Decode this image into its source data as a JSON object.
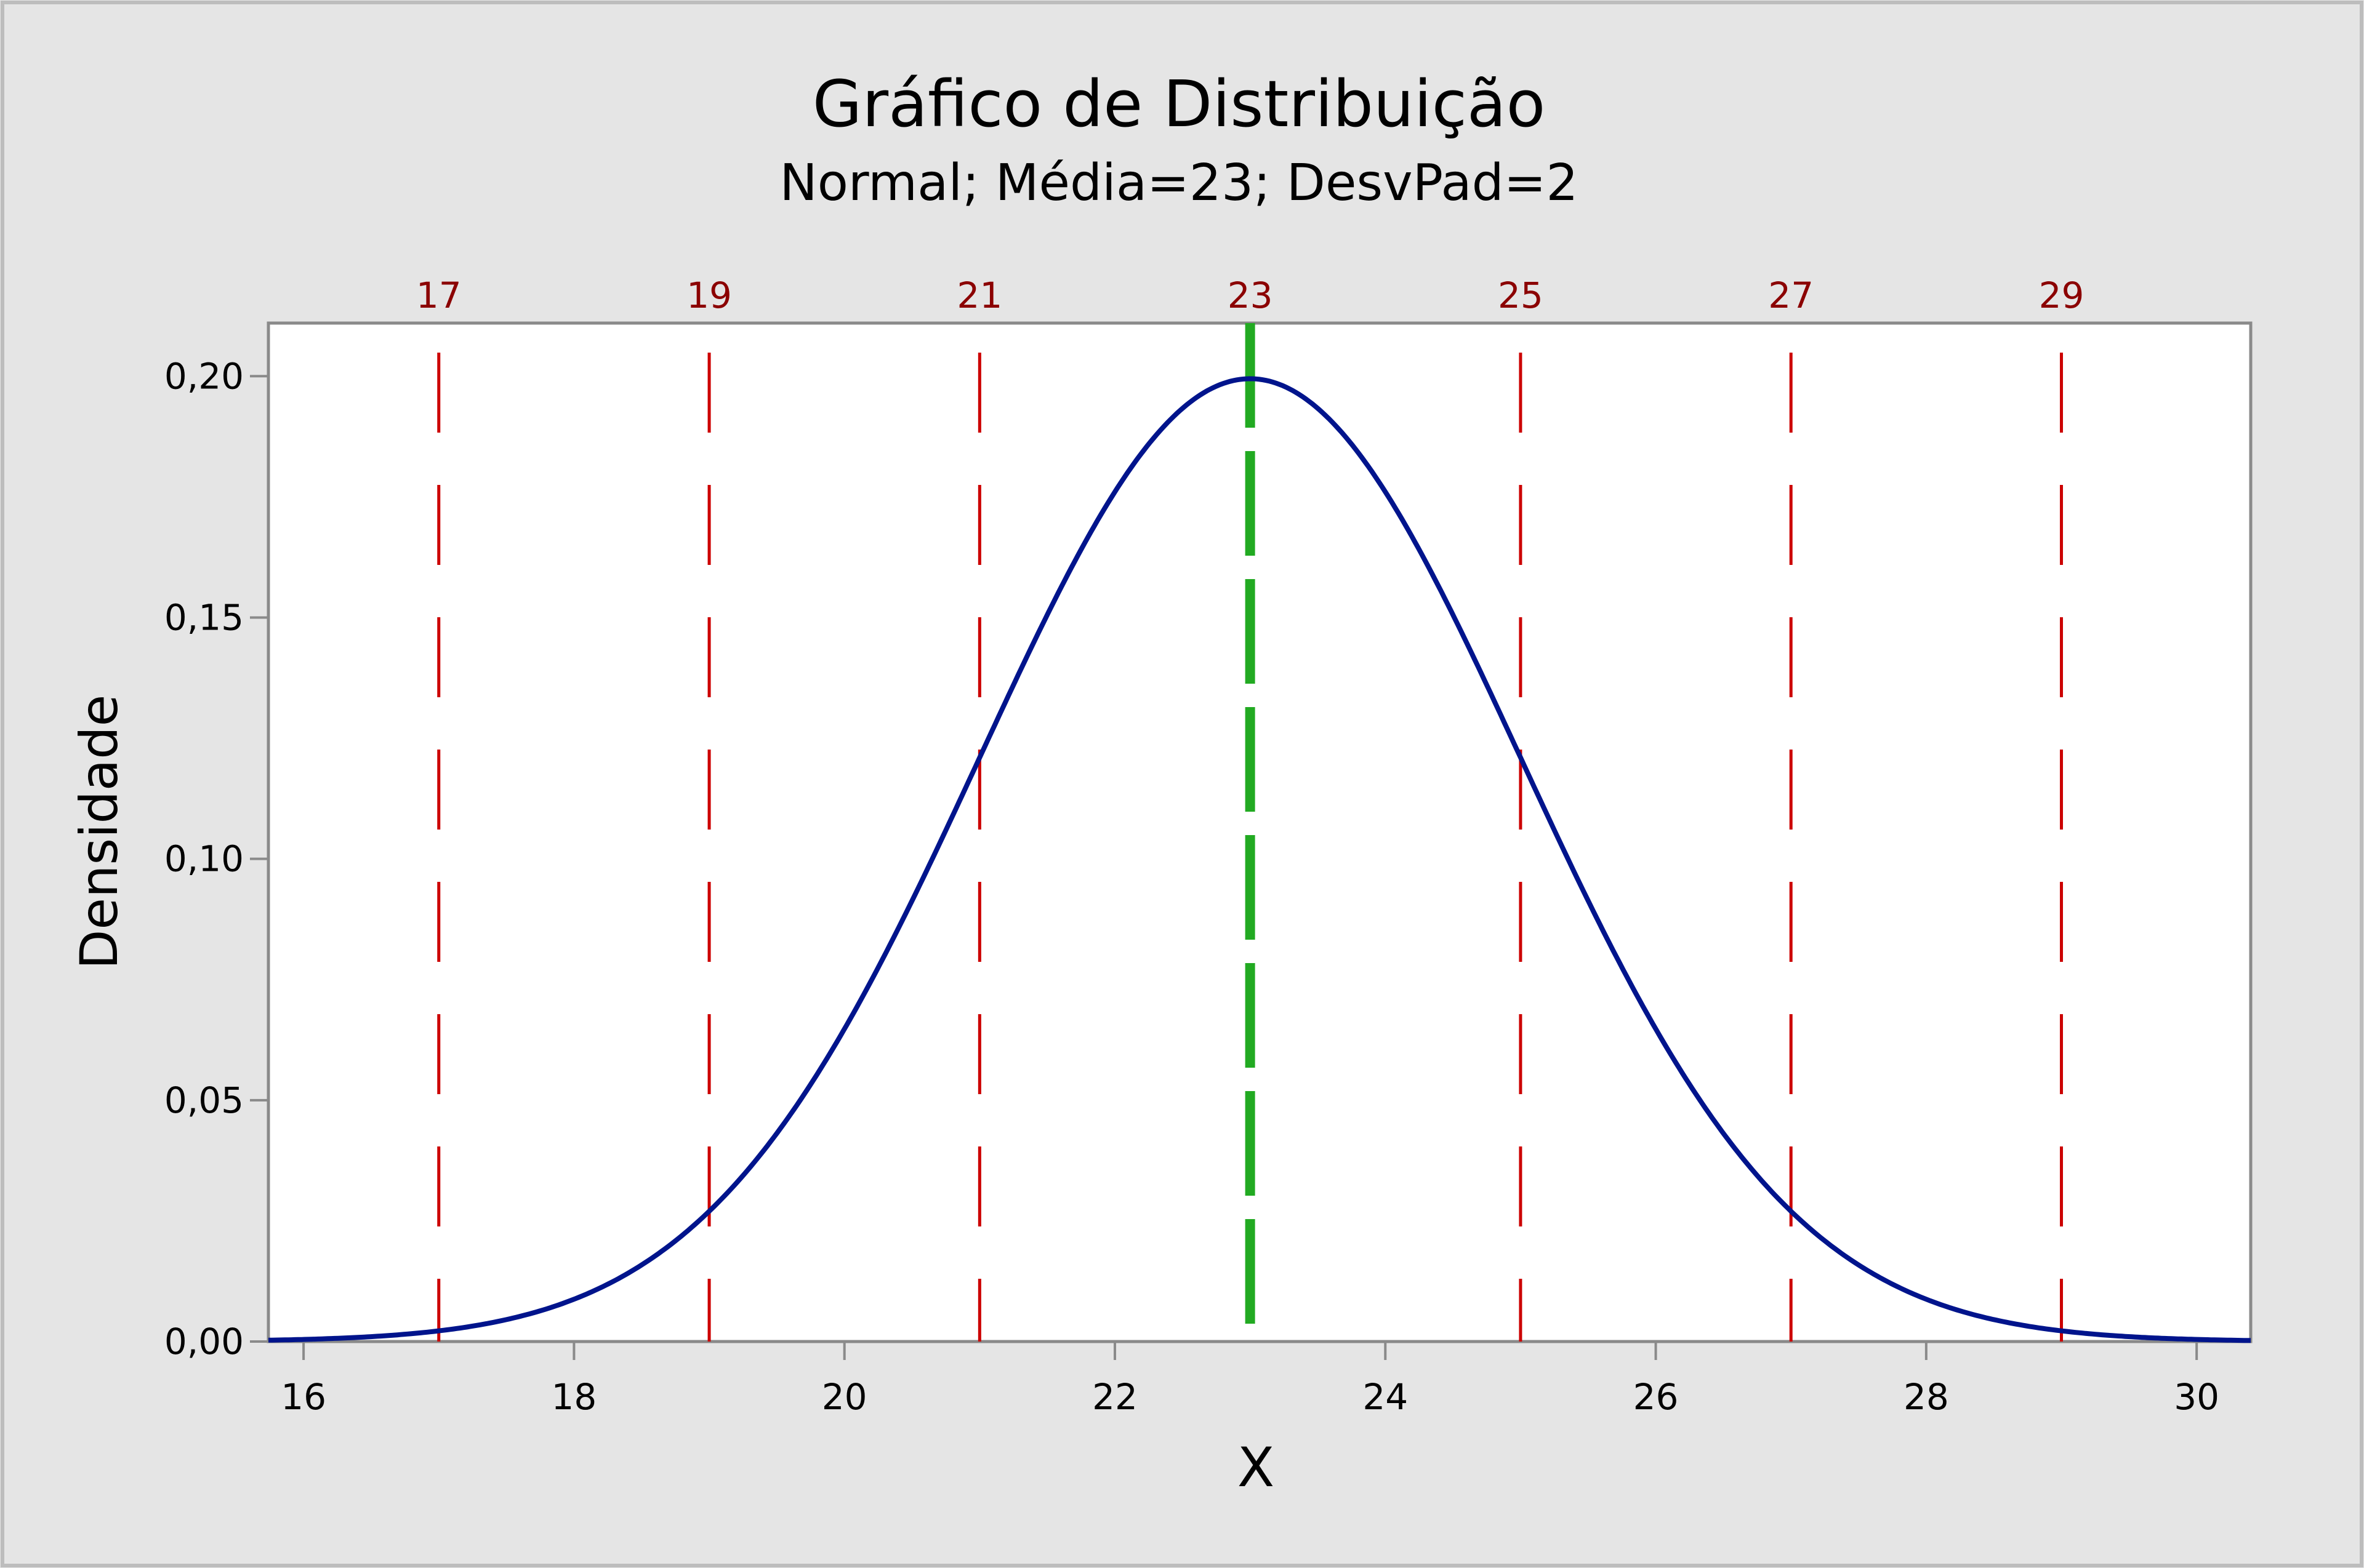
{
  "chart_data": {
    "type": "line",
    "title": "Gráfico de Distribuição",
    "subtitle": "Normal; Média=23; DesvPad=2",
    "xlabel": "X",
    "ylabel": "Densidade",
    "distribution": {
      "name": "Normal",
      "mean": 23,
      "sd": 2
    },
    "xlim": [
      15.74,
      30.4
    ],
    "ylim": [
      0,
      0.211
    ],
    "x_ticks": [
      16,
      18,
      20,
      22,
      24,
      26,
      28,
      30
    ],
    "x_tick_labels": [
      "16",
      "18",
      "20",
      "22",
      "24",
      "26",
      "28",
      "30"
    ],
    "y_ticks": [
      0,
      0.05,
      0.1,
      0.15,
      0.2
    ],
    "y_tick_labels": [
      "0,00",
      "0,05",
      "0,10",
      "0,15",
      "0,20"
    ],
    "reference_lines": [
      {
        "x": 17,
        "label": "17",
        "color": "#cc0000"
      },
      {
        "x": 19,
        "label": "19",
        "color": "#cc0000"
      },
      {
        "x": 21,
        "label": "21",
        "color": "#cc0000"
      },
      {
        "x": 23,
        "label": "23",
        "color": "#22aa22"
      },
      {
        "x": 25,
        "label": "25",
        "color": "#cc0000"
      },
      {
        "x": 27,
        "label": "27",
        "color": "#cc0000"
      },
      {
        "x": 29,
        "label": "29",
        "color": "#cc0000"
      }
    ],
    "series": [
      {
        "name": "Densidade",
        "color": "#00148c"
      }
    ],
    "grid": false,
    "legend": "none"
  }
}
